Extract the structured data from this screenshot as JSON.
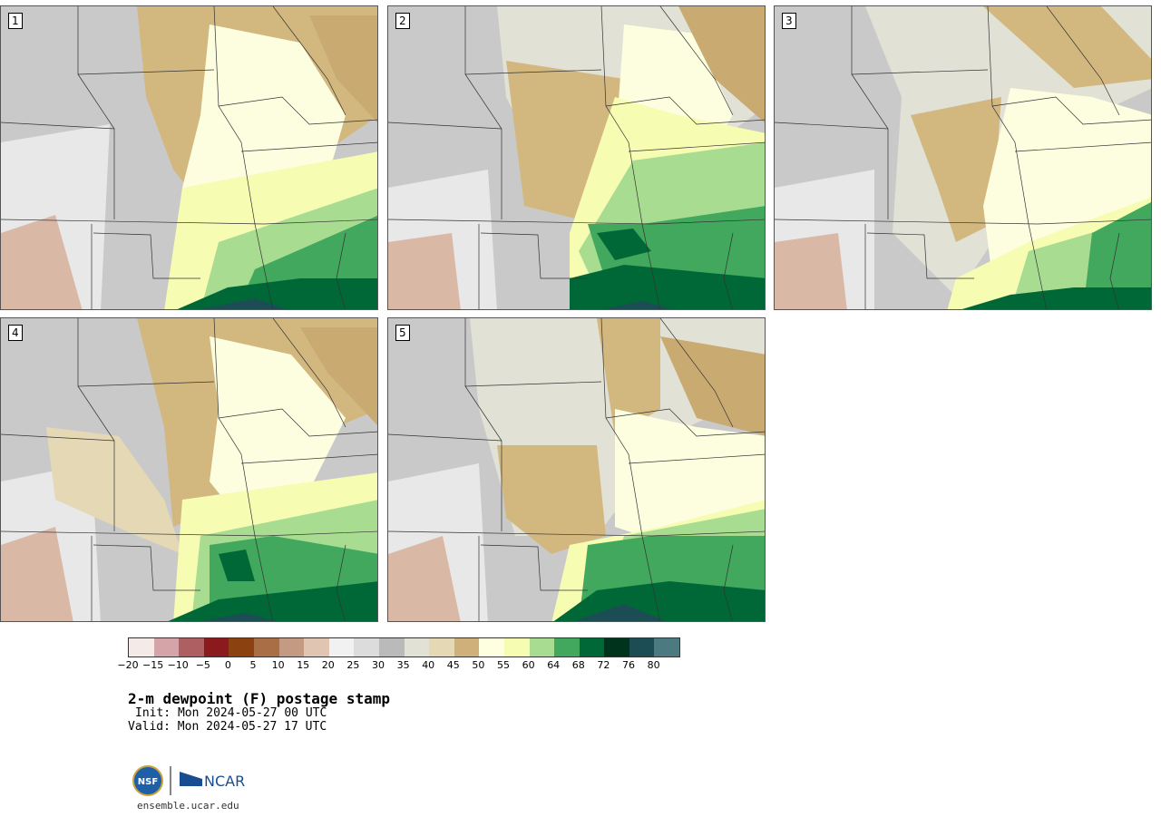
{
  "panels": [
    {
      "label": "1"
    },
    {
      "label": "2"
    },
    {
      "label": "3"
    },
    {
      "label": "4"
    },
    {
      "label": "5"
    }
  ],
  "colorbar": {
    "colors": [
      "#f4ebe9",
      "#d5a4a8",
      "#ae5f62",
      "#8b1a1e",
      "#8b4210",
      "#aa6e47",
      "#c49a82",
      "#e0c5b3",
      "#f1f1f1",
      "#dcdcdc",
      "#bababa",
      "#e1e1d6",
      "#e5d8b4",
      "#cfb07a",
      "#fefee0",
      "#f7fcb3",
      "#a8dc91",
      "#41a85e",
      "#006837",
      "#00331b",
      "#1c4d55",
      "#4d7a80"
    ],
    "ticks": [
      "−20",
      "−15",
      "−10",
      "−5",
      "0",
      "5",
      "10",
      "15",
      "20",
      "25",
      "30",
      "35",
      "40",
      "45",
      "50",
      "55",
      "60",
      "64",
      "68",
      "72",
      "76",
      "80"
    ]
  },
  "title": "2-m dewpoint (F) postage stamp",
  "init": "Init: Mon 2024-05-27 00 UTC",
  "valid": "Valid: Mon 2024-05-27 17 UTC",
  "logos": {
    "nsf": "NSF",
    "ncar": "NCAR"
  },
  "site": "ensemble.ucar.edu"
}
